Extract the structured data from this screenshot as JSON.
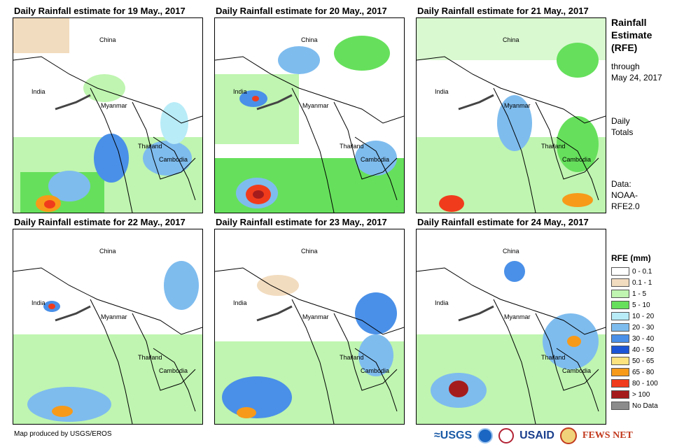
{
  "panels": [
    {
      "title": "Daily Rainfall estimate for 19 May., 2017"
    },
    {
      "title": "Daily Rainfall estimate for 20 May., 2017"
    },
    {
      "title": "Daily Rainfall estimate for 21 May., 2017"
    },
    {
      "title": "Daily Rainfall estimate for 22 May., 2017"
    },
    {
      "title": "Daily Rainfall estimate for 23 May., 2017"
    },
    {
      "title": "Daily Rainfall estimate for 24 May., 2017"
    }
  ],
  "place_labels": {
    "china": "China",
    "india": "India",
    "myanmar": "Myanmar",
    "thailand": "Thailand",
    "cambodia": "Cambodia"
  },
  "sidebar": {
    "title_line1": "Rainfall",
    "title_line2": "Estimate",
    "title_line3": "(RFE)",
    "through_line1": "through",
    "through_line2": "May 24, 2017",
    "totals_line1": "Daily",
    "totals_line2": "Totals",
    "data_line1": "Data:",
    "data_line2": "NOAA-",
    "data_line3": "RFE2.0"
  },
  "legend": {
    "title": "RFE (mm)",
    "items": [
      {
        "label": "0 - 0.1",
        "color": "#ffffff"
      },
      {
        "label": "0.1 - 1",
        "color": "#f2dcbf"
      },
      {
        "label": "1 - 5",
        "color": "#bff5b0"
      },
      {
        "label": "5 - 10",
        "color": "#66e05c"
      },
      {
        "label": "10 - 20",
        "color": "#b8ecf7"
      },
      {
        "label": "20 - 30",
        "color": "#7ebcee"
      },
      {
        "label": "30 - 40",
        "color": "#4a90e8"
      },
      {
        "label": "40 - 50",
        "color": "#1c56d6"
      },
      {
        "label": "50 - 65",
        "color": "#fce37e"
      },
      {
        "label": "65 - 80",
        "color": "#f79a1a"
      },
      {
        "label": "80 - 100",
        "color": "#f03c1c"
      },
      {
        "label": "> 100",
        "color": "#a51c1c"
      },
      {
        "label": "No Data",
        "color": "#8c8c8c"
      }
    ]
  },
  "credit": "Map produced by USGS/EROS",
  "logos": {
    "usgs": "≈USGS",
    "usaid": "USAID",
    "fews": "FEWS NET"
  }
}
